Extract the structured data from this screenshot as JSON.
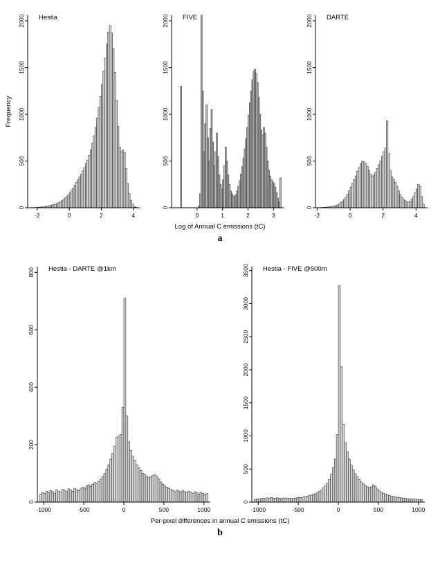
{
  "panel_a": {
    "letter": "a",
    "xlabel": "Log of Annual C emissions (tC)"
  },
  "panel_b": {
    "letter": "b",
    "xlabel": "Per-pixel differences in annual C emissions (tC)"
  },
  "colors": {
    "bar_fill": "#d6d6d6",
    "bar_stroke": "#2b2b2b",
    "axis": "#000000"
  },
  "chart_data": [
    {
      "type": "bar",
      "title": "Hestia",
      "ylabel": "Frequency",
      "xlabel": "Log of Annual C emissions (tC)",
      "xlim": [
        -2.6,
        4.4
      ],
      "ylim": [
        0,
        2060
      ],
      "xticks": [
        -2,
        0,
        2,
        4
      ],
      "yticks": [
        0,
        500,
        1000,
        1500,
        2000
      ],
      "bin_start": -2.4,
      "bin_width": 0.1,
      "fill": "#d6d6d6",
      "stroke": "#2b2b2b",
      "bins": [
        2,
        3,
        2,
        4,
        5,
        6,
        8,
        10,
        12,
        15,
        18,
        22,
        26,
        30,
        35,
        40,
        45,
        55,
        65,
        75,
        90,
        105,
        120,
        140,
        160,
        185,
        210,
        240,
        270,
        300,
        330,
        360,
        395,
        430,
        470,
        510,
        560,
        620,
        690,
        770,
        860,
        960,
        1070,
        1190,
        1320,
        1460,
        1600,
        1750,
        1880,
        1950,
        1870,
        1700,
        1450,
        1150,
        870,
        650,
        600,
        620,
        590,
        420,
        260,
        150,
        80,
        40,
        15,
        5
      ]
    },
    {
      "type": "bar",
      "title": "FIVE",
      "ylabel": "",
      "xlabel": "Log of Annual C emissions (tC)",
      "xlim": [
        -1.0,
        3.4
      ],
      "ylim": [
        0,
        2060
      ],
      "xticks": [
        0,
        1,
        2,
        3
      ],
      "yticks": [
        0,
        500,
        1000,
        1500,
        2000
      ],
      "bin_start": -0.7,
      "bin_width": 0.05,
      "fill": "#b8b8b8",
      "stroke": "#2b2b2b",
      "bins": [
        0,
        1300,
        0,
        0,
        0,
        0,
        0,
        0,
        0,
        0,
        0,
        0,
        0,
        0,
        0,
        20,
        150,
        2150,
        1250,
        600,
        900,
        1100,
        750,
        500,
        850,
        1050,
        700,
        450,
        600,
        800,
        550,
        350,
        250,
        200,
        300,
        450,
        650,
        500,
        350,
        250,
        180,
        150,
        130,
        120,
        140,
        180,
        230,
        290,
        360,
        440,
        530,
        630,
        740,
        860,
        990,
        1120,
        1250,
        1370,
        1460,
        1480,
        1440,
        1340,
        1180,
        1000,
        830,
        780,
        860,
        800,
        650,
        500,
        400,
        340,
        300,
        280,
        260,
        220,
        160,
        100,
        60,
        320
      ]
    },
    {
      "type": "bar",
      "title": "DARTE",
      "ylabel": "",
      "xlabel": "Log of Annual C emissions (tC)",
      "xlim": [
        -2.1,
        4.7
      ],
      "ylim": [
        0,
        2060
      ],
      "xticks": [
        -2,
        0,
        2,
        4
      ],
      "yticks": [
        0,
        500,
        1000,
        1500,
        2000
      ],
      "bin_start": -1.9,
      "bin_width": 0.1,
      "fill": "#d6d6d6",
      "stroke": "#2b2b2b",
      "bins": [
        2,
        3,
        4,
        5,
        6,
        8,
        10,
        13,
        16,
        20,
        25,
        30,
        40,
        55,
        70,
        90,
        115,
        145,
        180,
        220,
        260,
        300,
        340,
        390,
        430,
        470,
        500,
        490,
        470,
        440,
        400,
        360,
        340,
        350,
        380,
        420,
        460,
        500,
        550,
        600,
        640,
        930,
        580,
        400,
        330,
        300,
        270,
        230,
        180,
        140,
        110,
        90,
        75,
        65,
        60,
        70,
        90,
        120,
        160,
        200,
        250,
        230,
        120,
        40
      ]
    },
    {
      "type": "bar",
      "title": "Hestia - DARTE @1km",
      "ylabel": "",
      "xlabel": "Per-pixel differences in annual C emissions (tC)",
      "xlim": [
        -1080,
        1080
      ],
      "ylim": [
        0,
        820
      ],
      "xticks": [
        -1000,
        -500,
        0,
        500,
        1000
      ],
      "yticks": [
        0,
        200,
        400,
        600,
        800
      ],
      "bin_start": -1050,
      "bin_width": 25,
      "fill": "#d6d6d6",
      "stroke": "#2b2b2b",
      "bins": [
        28,
        34,
        30,
        38,
        32,
        40,
        36,
        30,
        42,
        38,
        34,
        44,
        40,
        36,
        46,
        42,
        38,
        48,
        44,
        40,
        46,
        52,
        48,
        56,
        60,
        54,
        62,
        68,
        64,
        72,
        80,
        90,
        100,
        115,
        130,
        150,
        170,
        195,
        225,
        230,
        235,
        330,
        710,
        300,
        210,
        180,
        160,
        145,
        130,
        120,
        110,
        100,
        95,
        90,
        85,
        88,
        92,
        95,
        90,
        80,
        70,
        62,
        56,
        52,
        48,
        44,
        40,
        36,
        42,
        38,
        34,
        40,
        36,
        32,
        38,
        34,
        30,
        36,
        32,
        28,
        34,
        30,
        26,
        30
      ]
    },
    {
      "type": "bar",
      "title": "Hestia - FIVE @500m",
      "ylabel": "",
      "xlabel": "Per-pixel differences in annual C emissions (tC)",
      "xlim": [
        -1080,
        1080
      ],
      "ylim": [
        0,
        3560
      ],
      "xticks": [
        -1000,
        -500,
        0,
        500,
        1000
      ],
      "yticks": [
        0,
        500,
        1000,
        1500,
        2000,
        2500,
        3000,
        3500
      ],
      "bin_start": -1050,
      "bin_width": 25,
      "fill": "#d6d6d6",
      "stroke": "#2b2b2b",
      "bins": [
        40,
        50,
        45,
        55,
        60,
        50,
        65,
        55,
        70,
        60,
        55,
        65,
        58,
        52,
        62,
        56,
        60,
        54,
        58,
        52,
        60,
        66,
        72,
        68,
        76,
        82,
        90,
        98,
        106,
        115,
        125,
        140,
        160,
        185,
        215,
        250,
        290,
        340,
        420,
        520,
        650,
        1020,
        3270,
        2050,
        1180,
        900,
        760,
        650,
        560,
        490,
        430,
        380,
        340,
        305,
        275,
        250,
        230,
        215,
        230,
        260,
        240,
        200,
        170,
        150,
        135,
        120,
        108,
        98,
        90,
        84,
        78,
        72,
        68,
        64,
        60,
        56,
        52,
        50,
        48,
        46,
        44,
        42,
        40,
        38
      ]
    }
  ]
}
